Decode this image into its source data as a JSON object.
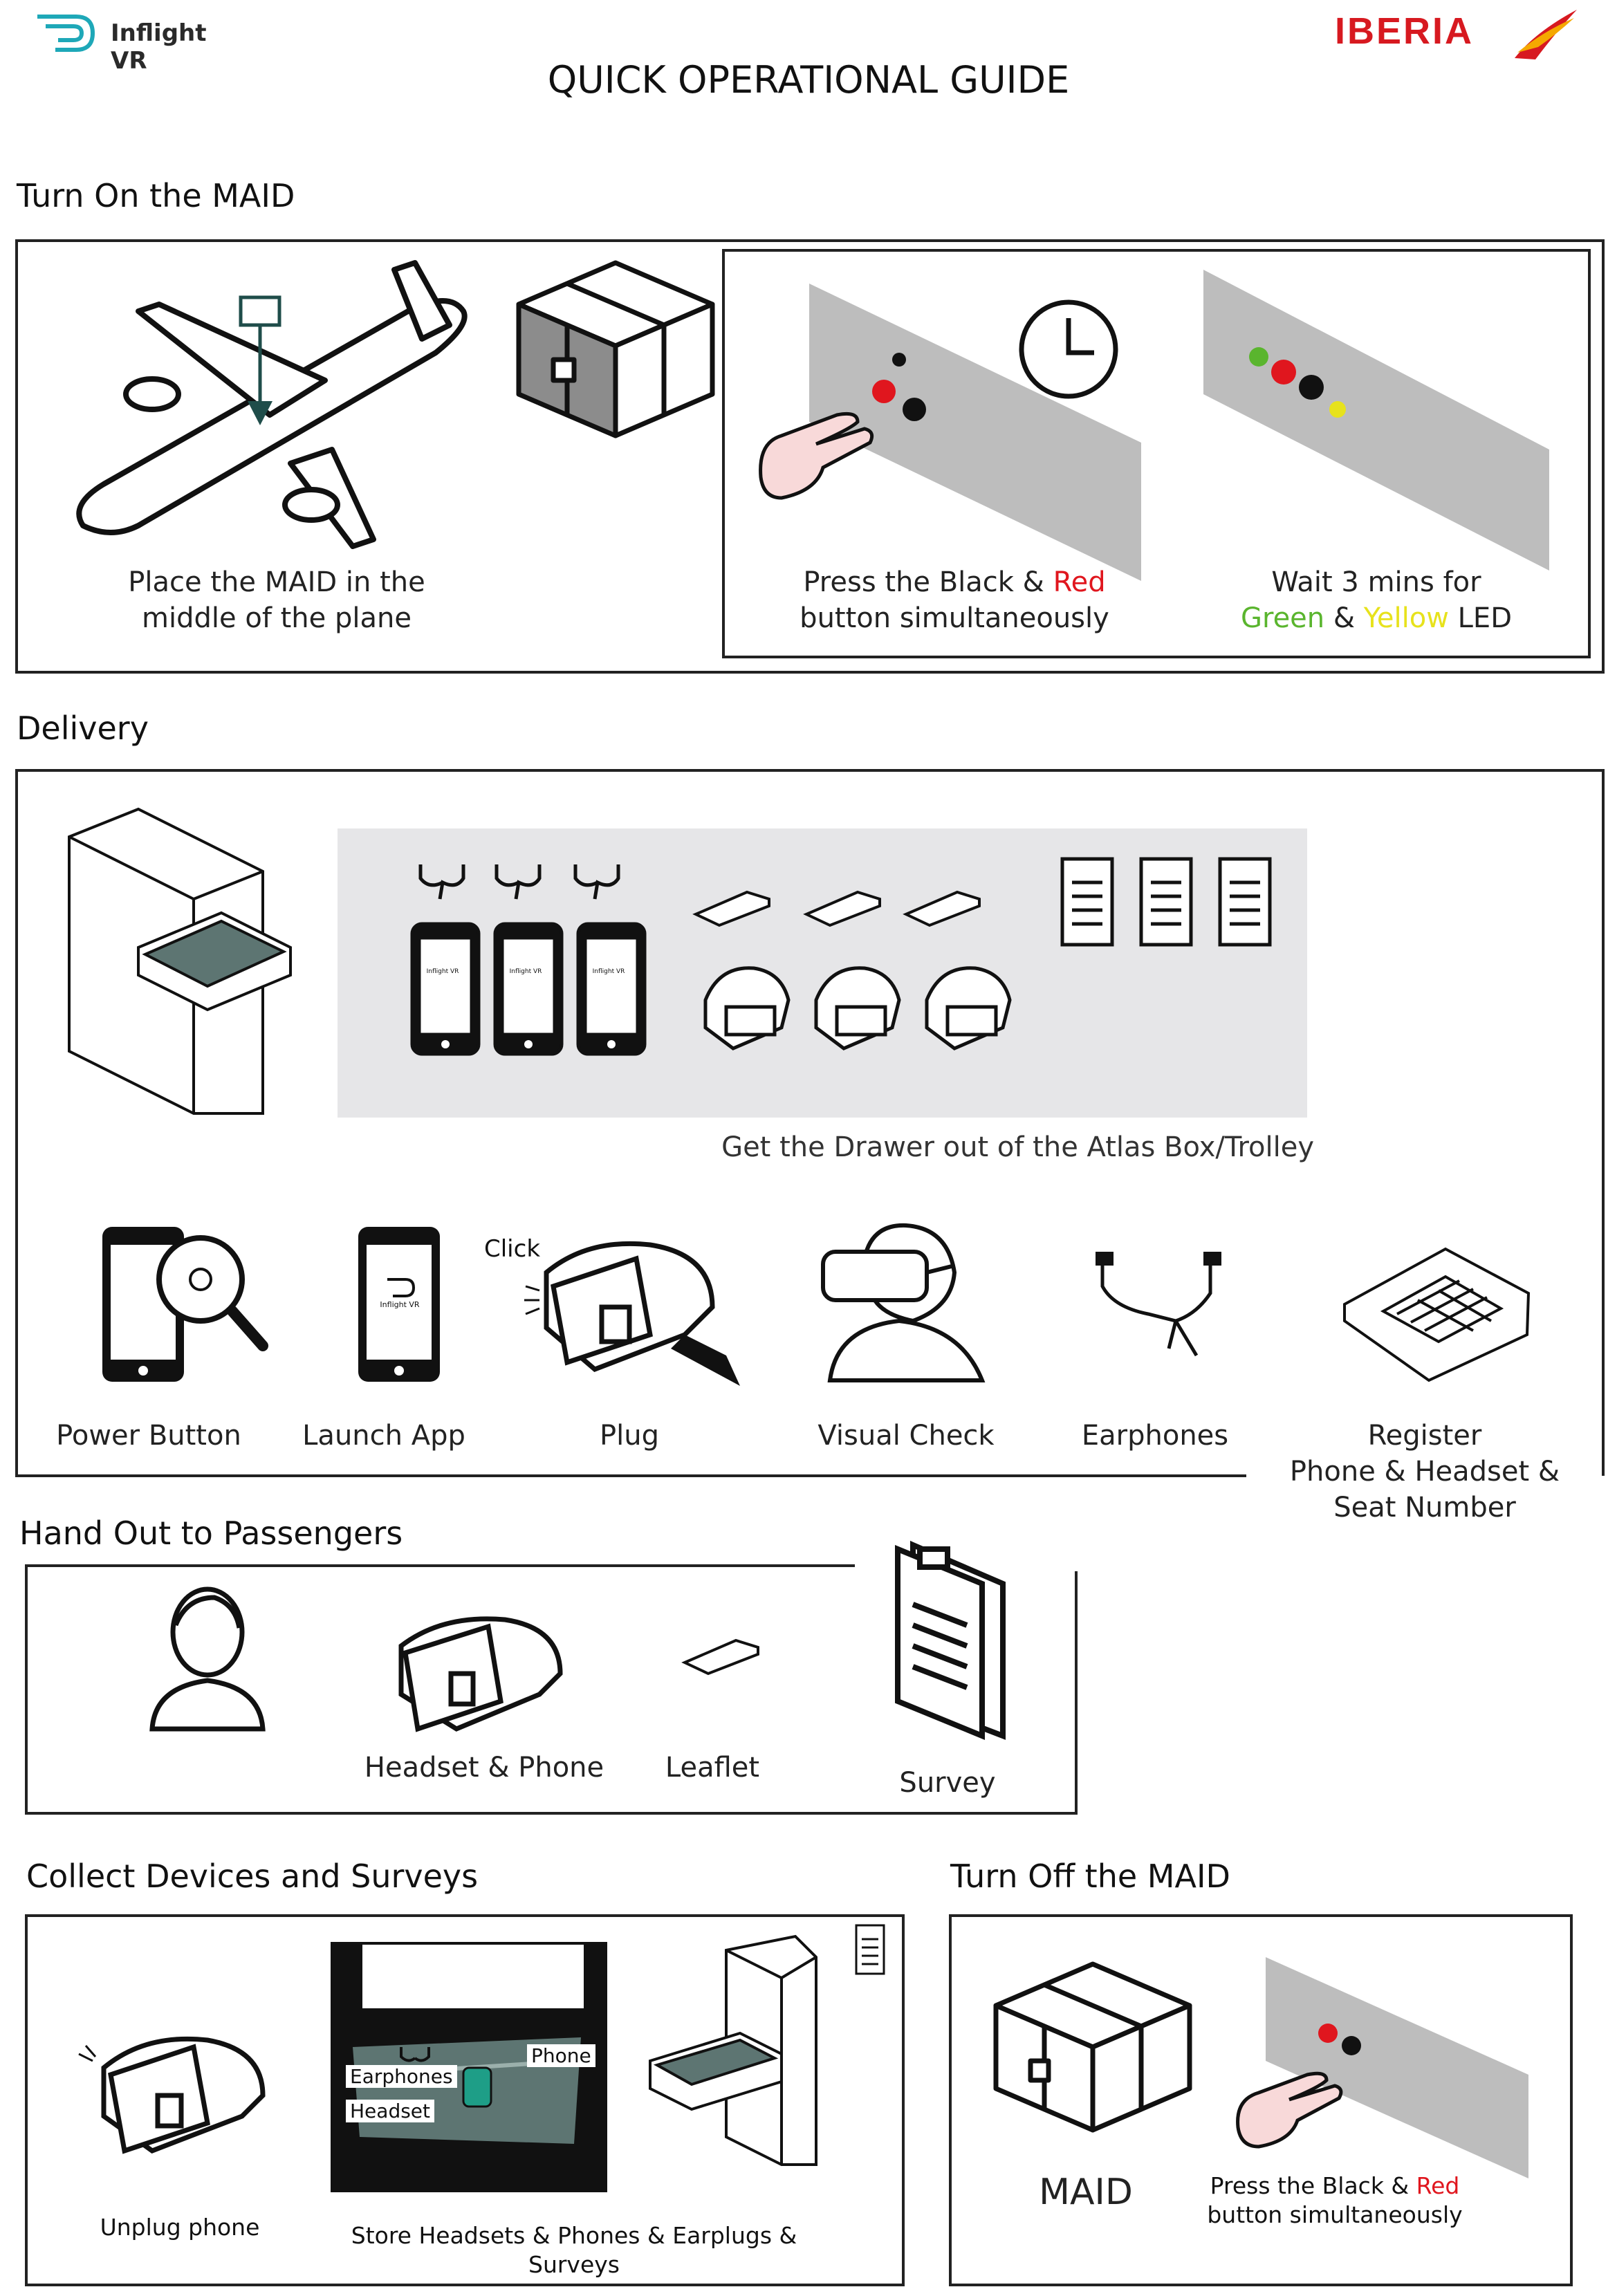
{
  "header": {
    "logo_text": "Inflight VR",
    "airline_logo": "IBERIA",
    "title": "QUICK OPERATIONAL GUIDE"
  },
  "turn_on": {
    "title": "Turn On the MAID",
    "step1": {
      "line1": "Place the MAID in the",
      "line2": "middle of the plane"
    },
    "step2": {
      "line1_a": "Press the Black & ",
      "line1_b": "Red",
      "line2": "button simultaneously"
    },
    "step3": {
      "line1": "Wait 3 mins for",
      "green": "Green",
      "amp": " & ",
      "yellow": "Yellow",
      "led": " LED"
    }
  },
  "delivery": {
    "title": "Delivery",
    "drawer_caption": "Get the Drawer out of the Atlas Box/Trolley",
    "phone_screen_text": "Inflight VR",
    "click_label": "Click",
    "steps": [
      {
        "label": "Power Button"
      },
      {
        "label": "Launch App"
      },
      {
        "label": "Plug"
      },
      {
        "label": "Visual Check"
      },
      {
        "label": "Earphones"
      }
    ],
    "register": {
      "line1": "Register",
      "line2": "Phone & Headset &",
      "line3": "Seat Number"
    }
  },
  "hand_out": {
    "title": "Hand Out to Passengers",
    "items": [
      {
        "label": "Headset & Phone"
      },
      {
        "label": "Leaflet"
      },
      {
        "label": "Survey"
      }
    ]
  },
  "collect": {
    "title": "Collect Devices and Surveys",
    "unplug": "Unplug phone",
    "store": "Store Headsets & Phones & Earplugs & Surveys",
    "tray_labels": {
      "phone": "Phone",
      "earphones": "Earphones",
      "headset": "Headset"
    }
  },
  "turn_off": {
    "title": "Turn Off the MAID",
    "maid_label": "MAID",
    "press_a": "Press the Black & ",
    "press_b": "Red",
    "press_line2": "button simultaneously"
  },
  "colors": {
    "teal": "#1ea8b8",
    "iberia_red": "#d71920",
    "iberia_yellow": "#f5a800",
    "panel_gray": "#bdbdbd",
    "drawer_bg": "#e6e6e8",
    "tray_green": "#5d7572"
  }
}
